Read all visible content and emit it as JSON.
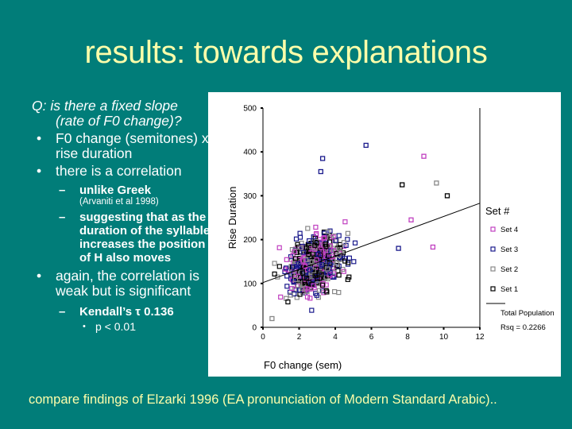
{
  "slide": {
    "background_color": "#017d79",
    "title": "results: towards explanations",
    "title_color": "#fefeaa",
    "body": {
      "question_prefix": "Q:",
      "question_line1": "is there a fixed slope",
      "question_line2": "(rate of F0 change)?",
      "bullets": [
        {
          "marker": "•",
          "text": "F0 change (semitones) x rise duration"
        },
        {
          "marker": "•",
          "text": "there is a correlation"
        }
      ],
      "sub_bullets_1": [
        {
          "marker": "–",
          "text": "unlike Greek",
          "citation": "(Arvaniti et al 1998)"
        },
        {
          "marker": "–",
          "text": "suggesting that as the duration of the syllable increases the position of H also moves"
        }
      ],
      "bullet_3": {
        "marker": "•",
        "text": "again, the correlation is weak but is significant"
      },
      "sub_bullet_3": {
        "marker": "–",
        "text": "Kendall’s τ 0.136"
      },
      "sub_sub_bullet_3": {
        "marker": "•",
        "text": "p < 0.01"
      }
    },
    "footer": "compare findings of Elzarki 1996 (EA pronunciation of Modern Standard Arabic).."
  },
  "chart_data": {
    "type": "scatter",
    "title": "",
    "xlabel": "F0 change (sem)",
    "ylabel": "Rise Duration",
    "xlim": [
      0,
      12
    ],
    "ylim": [
      0,
      500
    ],
    "x_ticks": [
      "0",
      "2",
      "4",
      "6",
      "8",
      "10",
      "12"
    ],
    "y_ticks": [
      "0",
      "100",
      "200",
      "300",
      "400",
      "500"
    ],
    "grid": false,
    "legend_position": "right",
    "legend_title": "Set #",
    "series": [
      {
        "name": "Set 4",
        "color": "#c040c0",
        "marker": "open-square"
      },
      {
        "name": "Set 3",
        "color": "#1a1a8c",
        "marker": "open-square"
      },
      {
        "name": "Set 2",
        "color": "#888888",
        "marker": "open-square"
      },
      {
        "name": "Set 1",
        "color": "#000000",
        "marker": "open-square"
      }
    ],
    "fit_line": {
      "label": "Total Population",
      "rsq_label": "Rsq = 0.2266",
      "rsq": 0.2266,
      "x": [
        0,
        12
      ],
      "y": [
        102,
        283
      ]
    },
    "notable_points": [
      {
        "x": 5.7,
        "y": 415,
        "set": "Set 3"
      },
      {
        "x": 8.9,
        "y": 390,
        "set": "Set 4"
      },
      {
        "x": 3.3,
        "y": 385,
        "set": "Set 3"
      },
      {
        "x": 3.2,
        "y": 355,
        "set": "Set 3"
      },
      {
        "x": 9.6,
        "y": 329,
        "set": "Set 2"
      },
      {
        "x": 7.7,
        "y": 325,
        "set": "Set 1"
      },
      {
        "x": 10.2,
        "y": 300,
        "set": "Set 1"
      },
      {
        "x": 8.2,
        "y": 245,
        "set": "Set 4"
      },
      {
        "x": 7.5,
        "y": 180,
        "set": "Set 3"
      },
      {
        "x": 9.4,
        "y": 183,
        "set": "Set 4"
      },
      {
        "x": 0.5,
        "y": 20,
        "set": "Set 2"
      }
    ],
    "cluster_summary": {
      "center_x": 2.5,
      "center_y": 150,
      "x_range": [
        0,
        11
      ],
      "y_range": [
        10,
        420
      ],
      "approx_point_count": 600
    }
  }
}
